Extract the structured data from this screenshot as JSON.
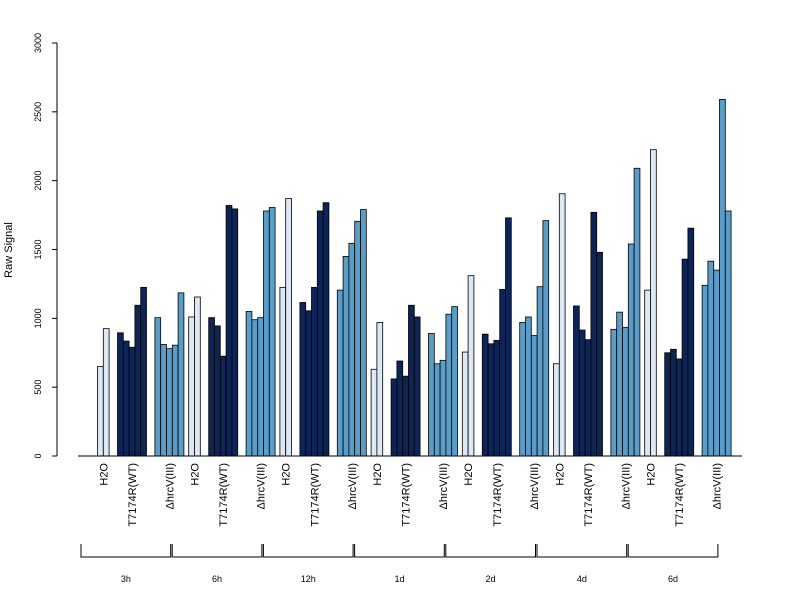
{
  "chart_data": {
    "type": "bar",
    "ylabel": "Raw Signal",
    "ylim": [
      0,
      3000
    ],
    "yticks": [
      0,
      500,
      1000,
      1500,
      2000,
      2500,
      3000
    ],
    "grid": false,
    "colors": {
      "H2O": "#dde8f4",
      "T7174R(WT)": "#0c2456",
      "ΔhrcV(III)": "#5b9dc9"
    },
    "groups": [
      {
        "label": "3h",
        "treatments": [
          {
            "label": "H2O",
            "values": [
              650,
              925
            ]
          },
          {
            "label": "T7174R(WT)",
            "values": [
              895,
              835,
              790,
              1095,
              1225
            ]
          },
          {
            "label": "ΔhrcV(III)",
            "values": [
              1005,
              810,
              780,
              805,
              1185
            ]
          }
        ]
      },
      {
        "label": "6h",
        "treatments": [
          {
            "label": "H2O",
            "values": [
              1010,
              1155
            ]
          },
          {
            "label": "T7174R(WT)",
            "values": [
              1005,
              945,
              725,
              1820,
              1795
            ]
          },
          {
            "label": "ΔhrcV(III)",
            "values": [
              1050,
              990,
              1005,
              1780,
              1805
            ]
          }
        ]
      },
      {
        "label": "12h",
        "treatments": [
          {
            "label": "H2O",
            "values": [
              1225,
              1870
            ]
          },
          {
            "label": "T7174R(WT)",
            "values": [
              1115,
              1055,
              1225,
              1780,
              1840
            ]
          },
          {
            "label": "ΔhrcV(III)",
            "values": [
              1205,
              1450,
              1545,
              1705,
              1790
            ]
          }
        ]
      },
      {
        "label": "1d",
        "treatments": [
          {
            "label": "H2O",
            "values": [
              630,
              970
            ]
          },
          {
            "label": "T7174R(WT)",
            "values": [
              560,
              690,
              580,
              1095,
              1010
            ]
          },
          {
            "label": "ΔhrcV(III)",
            "values": [
              890,
              670,
              695,
              1030,
              1085
            ]
          }
        ]
      },
      {
        "label": "2d",
        "treatments": [
          {
            "label": "H2O",
            "values": [
              755,
              1310
            ]
          },
          {
            "label": "T7174R(WT)",
            "values": [
              885,
              815,
              840,
              1210,
              1730
            ]
          },
          {
            "label": "ΔhrcV(III)",
            "values": [
              970,
              1010,
              875,
              1230,
              1710
            ]
          }
        ]
      },
      {
        "label": "4d",
        "treatments": [
          {
            "label": "H2O",
            "values": [
              670,
              1905
            ]
          },
          {
            "label": "T7174R(WT)",
            "values": [
              1090,
              915,
              845,
              1770,
              1480
            ]
          },
          {
            "label": "ΔhrcV(III)",
            "values": [
              920,
              1045,
              935,
              1540,
              2090
            ]
          }
        ]
      },
      {
        "label": "6d",
        "treatments": [
          {
            "label": "H2O",
            "values": [
              1205,
              2225
            ]
          },
          {
            "label": "T7174R(WT)",
            "values": [
              750,
              775,
              705,
              1430,
              1655
            ]
          },
          {
            "label": "ΔhrcV(III)",
            "values": [
              1240,
              1415,
              1350,
              2590,
              1780
            ]
          }
        ]
      }
    ]
  }
}
